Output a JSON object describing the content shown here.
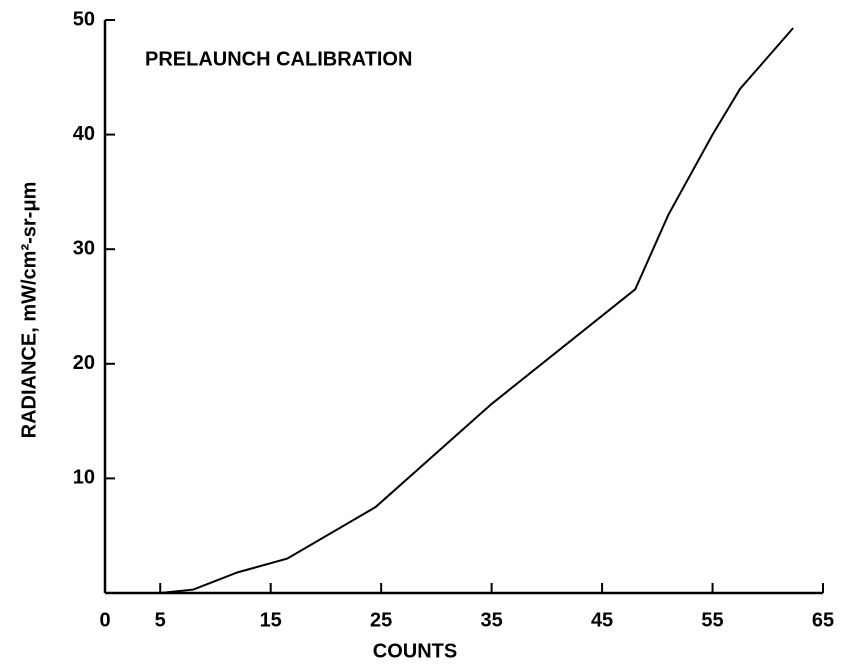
{
  "chart_data": {
    "type": "line",
    "annotation": "PRELAUNCH CALIBRATION",
    "xlabel": "COUNTS",
    "ylabel": "RADIANCE, mW/cm²-sr-μm",
    "x": [
      5,
      8,
      12,
      16.5,
      24.5,
      35,
      48,
      51,
      55,
      57.5,
      62.3
    ],
    "series": [
      {
        "color": "#000000",
        "values": [
          0,
          0.3,
          1.8,
          3,
          7.5,
          16.5,
          26.5,
          33,
          40,
          44,
          49.3
        ]
      }
    ],
    "xlim": [
      0,
      65
    ],
    "xticks": [
      0,
      5,
      15,
      25,
      35,
      45,
      55,
      65
    ],
    "ylim": [
      0,
      50
    ],
    "yticks": [
      10,
      20,
      30,
      40,
      50
    ]
  }
}
